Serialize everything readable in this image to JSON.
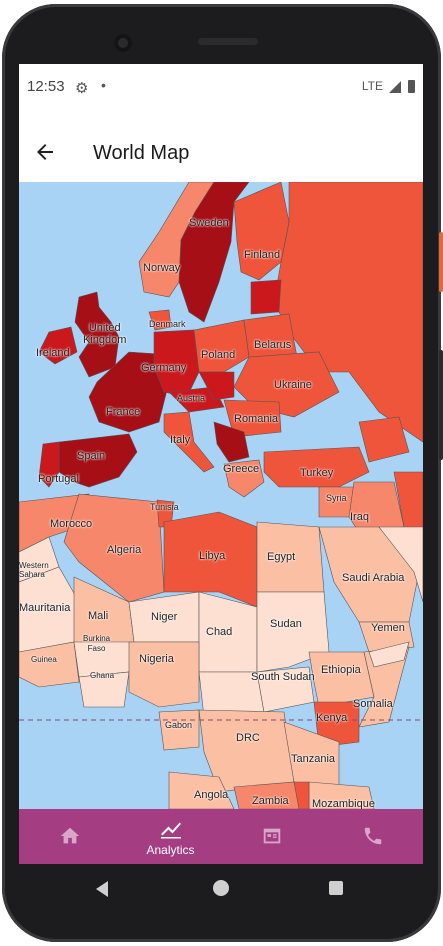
{
  "status_bar": {
    "time": "12:53",
    "network": "LTE"
  },
  "app_bar": {
    "title": "World Map"
  },
  "map": {
    "labels": {
      "sweden": "Sweden",
      "finland": "Finland",
      "norway": "Norway",
      "denmark": "Denmark",
      "united_kingdom": "United\nKingdom",
      "ireland": "Ireland",
      "germany": "Germany",
      "poland": "Poland",
      "belarus": "Belarus",
      "ukraine": "Ukraine",
      "austria": "Austria",
      "france": "France",
      "romania": "Romania",
      "italy": "Italy",
      "spain": "Spain",
      "portugal": "Portugal",
      "greece": "Greece",
      "turkey": "Turkey",
      "syria": "Syria",
      "iraq": "Iraq",
      "tunisia": "Tunisia",
      "morocco": "Morocco",
      "algeria": "Algeria",
      "libya": "Libya",
      "egypt": "Egypt",
      "saudi_arabia": "Saudi Arabia",
      "western_sahara": "Western\nSahara",
      "mauritania": "Mauritania",
      "mali": "Mali",
      "niger": "Niger",
      "chad": "Chad",
      "sudan": "Sudan",
      "yemen": "Yemen",
      "burkina_faso": "Burkina\nFaso",
      "guinea": "Guinea",
      "ghana": "Ghana",
      "nigeria": "Nigeria",
      "south_sudan": "South Sudan",
      "ethiopia": "Ethiopia",
      "somalia": "Somalia",
      "kenya": "Kenya",
      "gabon": "Gabon",
      "drc": "DRC",
      "tanzania": "Tanzania",
      "angola": "Angola",
      "zambia": "Zambia",
      "mozambique": "Mozambique"
    },
    "colors": {
      "ocean": "#a9d3f5",
      "darkest": "#a50f15",
      "dark": "#cb181d",
      "mid": "#ef553b",
      "midlight": "#f7876a",
      "light": "#fbbfa4",
      "lightest": "#fde0d2"
    }
  },
  "bottom_nav": {
    "items": [
      {
        "icon": "home-icon",
        "label": ""
      },
      {
        "icon": "analytics-icon",
        "label": "Analytics"
      },
      {
        "icon": "calendar-icon",
        "label": ""
      },
      {
        "icon": "phone-icon",
        "label": ""
      }
    ],
    "background": "#a43d82"
  }
}
